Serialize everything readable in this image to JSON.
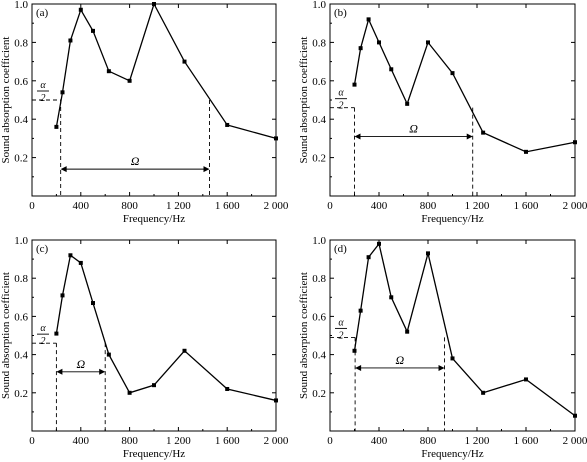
{
  "chart_data": [
    {
      "panel_label": "(a)",
      "type": "line",
      "xlabel": "Frequency/Hz",
      "ylabel": "Sound absorption coefficient",
      "xlim": [
        0,
        2000
      ],
      "ylim": [
        0,
        1.0
      ],
      "xticks": [
        0,
        400,
        800,
        1200,
        1600,
        2000
      ],
      "xtick_labels": [
        "0",
        "400",
        "800",
        "1 200",
        "1 600",
        "2 000"
      ],
      "yticks": [
        0.2,
        0.4,
        0.6,
        0.8,
        1.0
      ],
      "ytick_labels": [
        "0.2",
        "0.4",
        "0.6",
        "0.8",
        "1.0"
      ],
      "series": [
        {
          "x": [
            200,
            250,
            315,
            400,
            500,
            630,
            800,
            1000,
            1250,
            1600,
            2000
          ],
          "y": [
            0.36,
            0.54,
            0.81,
            0.97,
            0.86,
            0.65,
            0.6,
            1.0,
            0.7,
            0.37,
            0.3
          ]
        }
      ],
      "annotation": {
        "half_alpha_label_top": "α",
        "half_alpha_label_bottom": "2",
        "half_alpha_value": 0.5,
        "omega_label": "Ω",
        "omega_y": 0.14,
        "f_low": 235,
        "f_high": 1455
      }
    },
    {
      "panel_label": "(b)",
      "type": "line",
      "xlabel": "Frequency/Hz",
      "ylabel": "Sound absorption coefficient",
      "xlim": [
        0,
        2000
      ],
      "ylim": [
        0,
        1.0
      ],
      "xticks": [
        0,
        400,
        800,
        1200,
        1600,
        2000
      ],
      "xtick_labels": [
        "0",
        "400",
        "800",
        "1 200",
        "1 600",
        "2 000"
      ],
      "yticks": [
        0.2,
        0.4,
        0.6,
        0.8,
        1.0
      ],
      "ytick_labels": [
        "0.2",
        "0.4",
        "0.6",
        "0.8",
        "1.0"
      ],
      "series": [
        {
          "x": [
            200,
            250,
            315,
            400,
            500,
            630,
            800,
            1000,
            1250,
            1600,
            2000
          ],
          "y": [
            0.58,
            0.77,
            0.92,
            0.8,
            0.66,
            0.48,
            0.8,
            0.64,
            0.33,
            0.23,
            0.28
          ]
        }
      ],
      "annotation": {
        "half_alpha_label_top": "α",
        "half_alpha_label_bottom": "2",
        "half_alpha_value": 0.46,
        "omega_label": "Ω",
        "omega_y": 0.31,
        "f_low": 200,
        "f_high": 1165
      }
    },
    {
      "panel_label": "(c)",
      "type": "line",
      "xlabel": "Frequency/Hz",
      "ylabel": "Sound absorption coefficient",
      "xlim": [
        0,
        2000
      ],
      "ylim": [
        0,
        1.0
      ],
      "xticks": [
        0,
        400,
        800,
        1200,
        1600,
        2000
      ],
      "xtick_labels": [
        "0",
        "400",
        "800",
        "1 200",
        "1 600",
        "2 000"
      ],
      "yticks": [
        0.2,
        0.4,
        0.6,
        0.8,
        1.0
      ],
      "ytick_labels": [
        "0.2",
        "0.4",
        "0.6",
        "0.8",
        "1.0"
      ],
      "series": [
        {
          "x": [
            200,
            250,
            315,
            400,
            500,
            630,
            800,
            1000,
            1250,
            1600,
            2000
          ],
          "y": [
            0.51,
            0.71,
            0.92,
            0.88,
            0.67,
            0.4,
            0.2,
            0.24,
            0.42,
            0.22,
            0.16
          ]
        }
      ],
      "annotation": {
        "half_alpha_label_top": "α",
        "half_alpha_label_bottom": "2",
        "half_alpha_value": 0.46,
        "omega_label": "Ω",
        "omega_y": 0.31,
        "f_low": 200,
        "f_high": 600
      }
    },
    {
      "panel_label": "(d)",
      "type": "line",
      "xlabel": "Frequency/Hz",
      "ylabel": "Sound absorption coefficient",
      "xlim": [
        0,
        2000
      ],
      "ylim": [
        0,
        1.0
      ],
      "xticks": [
        0,
        400,
        800,
        1200,
        1600,
        2000
      ],
      "xtick_labels": [
        "0",
        "400",
        "800",
        "1 200",
        "1 600",
        "2 000"
      ],
      "yticks": [
        0.2,
        0.4,
        0.6,
        0.8,
        1.0
      ],
      "ytick_labels": [
        "0.2",
        "0.4",
        "0.6",
        "0.8",
        "1.0"
      ],
      "series": [
        {
          "x": [
            200,
            250,
            315,
            400,
            500,
            630,
            800,
            1000,
            1250,
            1600,
            2000
          ],
          "y": [
            0.42,
            0.63,
            0.91,
            0.98,
            0.7,
            0.52,
            0.93,
            0.38,
            0.2,
            0.27,
            0.08
          ]
        }
      ],
      "annotation": {
        "half_alpha_label_top": "α",
        "half_alpha_label_bottom": "2",
        "half_alpha_value": 0.49,
        "omega_label": "Ω",
        "omega_y": 0.33,
        "f_low": 205,
        "f_high": 935
      }
    }
  ]
}
